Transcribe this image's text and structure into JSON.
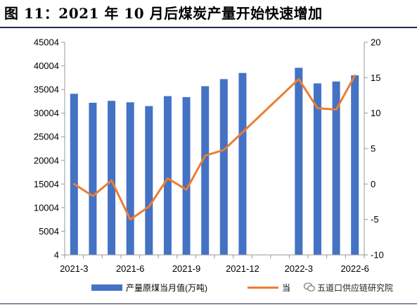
{
  "figure_title": "图 11：2021 年 10 月后煤炭产量开始快速增加",
  "colors": {
    "bar": "#4472c4",
    "line": "#ed7d31",
    "title_rule": "#1f2d4d"
  },
  "watermark": {
    "text": "五道口供应链研究院",
    "icon": "wechat-icon"
  },
  "chart_data": {
    "type": "bar",
    "x": [
      "2021-3",
      "2021-4",
      "2021-5",
      "2021-6",
      "2021-7",
      "2021-8",
      "2021-9",
      "2021-10",
      "2021-11",
      "2021-12",
      "2022-1",
      "2022-2",
      "2022-3",
      "2022-4",
      "2022-5",
      "2022-6"
    ],
    "xtick_labels": [
      "2021-3",
      "2021-6",
      "2021-9",
      "2021-12",
      "2022-3",
      "2022-6"
    ],
    "series": [
      {
        "name": "产量原煤当月值(万吨)",
        "type": "bar",
        "axis": "left",
        "values": [
          34100,
          32200,
          32600,
          32300,
          31500,
          33600,
          33400,
          35700,
          37200,
          38500,
          null,
          null,
          39600,
          36300,
          36700,
          38000
        ]
      },
      {
        "name": "当月同比",
        "type": "line",
        "axis": "right",
        "values": [
          0,
          -1.7,
          0.5,
          -5.0,
          -3.2,
          0.8,
          -0.8,
          4.0,
          4.8,
          null,
          null,
          null,
          14.8,
          10.7,
          10.5,
          15.3
        ]
      }
    ],
    "left_axis": {
      "min": 4,
      "max": 45004,
      "ticks": [
        4,
        5004,
        10004,
        15004,
        20004,
        25004,
        30004,
        35004,
        40004,
        45004
      ]
    },
    "right_axis": {
      "min": -10,
      "max": 20,
      "ticks": [
        -10,
        -5,
        0,
        5,
        10,
        15,
        20
      ]
    },
    "legend_labels": [
      "产量原煤当月值(万吨)",
      "当"
    ],
    "legend_position": "bottom",
    "grid": false
  }
}
